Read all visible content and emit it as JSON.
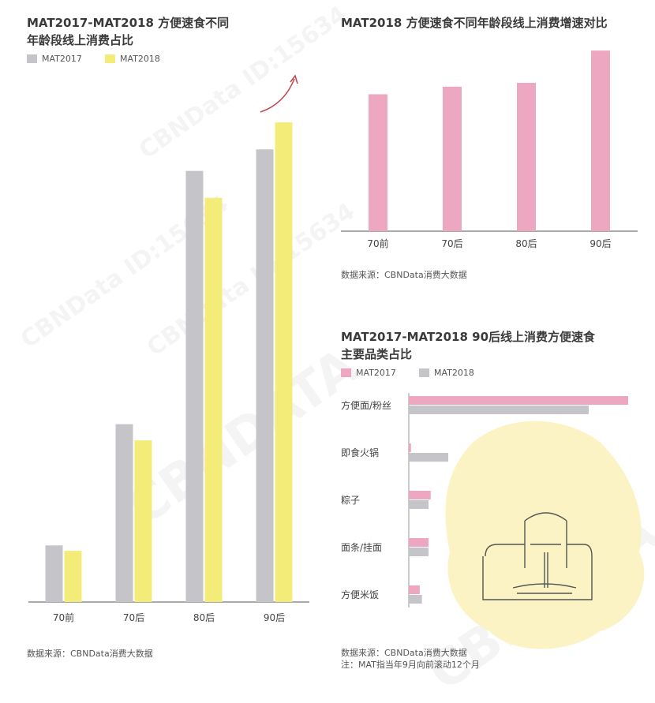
{
  "colors": {
    "gray": "#c5c4c9",
    "yellow": "#f4ec78",
    "pink": "#eea7c1",
    "axis": "#555555",
    "blob": "#fbf3c4",
    "arrow": "#c0444a"
  },
  "left": {
    "title_line1": "MAT2017-MAT2018 方便速食不同",
    "title_line2": "年龄段线上消费占比",
    "source": "数据来源：CBNData消费大数据"
  },
  "top_right": {
    "title": "MAT2018 方便速食不同年龄段线上消费增速对比",
    "source": "数据来源：CBNData消费大数据"
  },
  "bottom_right": {
    "title_line1": "MAT2017-MAT2018 90后线上消费方便速食",
    "title_line2": "主要品类占比",
    "source_line1": "数据来源：CBNData消费大数据",
    "source_line2": "注：MAT指当年9月向前滚动12个月"
  },
  "watermarks": [
    "CBNData ID:15634",
    "CBNData ID:15634",
    "CBNDATA",
    "CBNData ID:15634",
    "CBNDATA"
  ],
  "chart_data": [
    {
      "type": "bar",
      "title": "MAT2017-MAT2018 方便速食不同年龄段线上消费占比",
      "categories": [
        "70前",
        "70后",
        "80后",
        "90后"
      ],
      "series": [
        {
          "name": "MAT2017",
          "color": "#c5c4c9",
          "values": [
            10.5,
            33,
            80,
            84
          ]
        },
        {
          "name": "MAT2018",
          "color": "#f4ec78",
          "values": [
            9.5,
            30,
            75,
            89
          ]
        }
      ],
      "ylim": [
        0,
        100
      ],
      "legend": "top-left",
      "grid": false
    },
    {
      "type": "bar",
      "title": "MAT2018 方便速食不同年龄段线上消费增速对比",
      "categories": [
        "70前",
        "70后",
        "80后",
        "90后"
      ],
      "series": [
        {
          "color": "#eea7c1",
          "values": [
            72,
            76,
            78,
            95
          ]
        }
      ],
      "ylim": [
        0,
        100
      ],
      "grid": false
    },
    {
      "type": "bar",
      "orientation": "horizontal",
      "title": "MAT2017-MAT2018 90后线上消费方便速食主要品类占比",
      "categories": [
        "方便面/粉丝",
        "即食火锅",
        "粽子",
        "面条/挂面",
        "方便米饭"
      ],
      "series": [
        {
          "name": "MAT2017",
          "color": "#eea7c1",
          "values": [
            100,
            1,
            10,
            9,
            5
          ]
        },
        {
          "name": "MAT2018",
          "color": "#c5c4c9",
          "values": [
            82,
            18,
            9,
            9,
            6
          ]
        }
      ],
      "xlim": [
        0,
        100
      ],
      "legend": "top-left",
      "grid": false
    }
  ]
}
